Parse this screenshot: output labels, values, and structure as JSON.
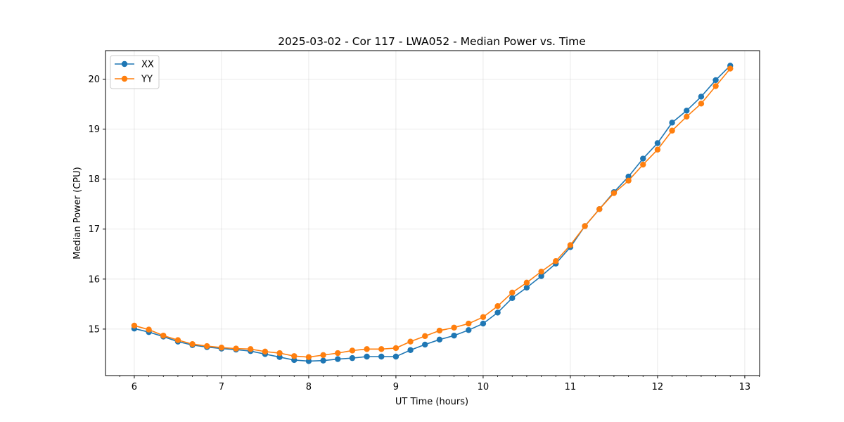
{
  "chart_data": {
    "type": "line",
    "title": "2025-03-02 - Cor 117 - LWA052 - Median Power vs. Time",
    "xlabel": "UT Time (hours)",
    "ylabel": "Median Power (CPU)",
    "xlim": [
      5.67,
      13.17
    ],
    "ylim": [
      14.07,
      20.57
    ],
    "xticks": [
      6,
      7,
      8,
      9,
      10,
      11,
      12,
      13
    ],
    "xtick_labels": [
      "6",
      "7",
      "8",
      "9",
      "10",
      "11",
      "12",
      "13"
    ],
    "yticks": [
      15,
      16,
      17,
      18,
      19,
      20
    ],
    "ytick_labels": [
      "15",
      "16",
      "17",
      "18",
      "19",
      "20"
    ],
    "grid": true,
    "legend": "top-left",
    "x": [
      6.0,
      6.1667,
      6.3333,
      6.5,
      6.6667,
      6.8333,
      7.0,
      7.1667,
      7.3333,
      7.5,
      7.6667,
      7.8333,
      8.0,
      8.1667,
      8.3333,
      8.5,
      8.6667,
      8.8333,
      9.0,
      9.1667,
      9.3333,
      9.5,
      9.6667,
      9.8333,
      10.0,
      10.1667,
      10.3333,
      10.5,
      10.6667,
      10.8333,
      11.0,
      11.1667,
      11.3333,
      11.5,
      11.6667,
      11.8333,
      12.0,
      12.1667,
      12.3333,
      12.5,
      12.6667,
      12.8333
    ],
    "series": [
      {
        "name": "XX",
        "color": "#1f77b4",
        "values": [
          15.01,
          14.94,
          14.85,
          14.75,
          14.68,
          14.64,
          14.61,
          14.59,
          14.56,
          14.5,
          14.44,
          14.38,
          14.36,
          14.37,
          14.4,
          14.42,
          14.45,
          14.45,
          14.45,
          14.58,
          14.69,
          14.79,
          14.87,
          14.98,
          15.11,
          15.33,
          15.62,
          15.83,
          16.06,
          16.31,
          16.64,
          17.06,
          17.4,
          17.74,
          18.05,
          18.41,
          18.72,
          19.13,
          19.37,
          19.65,
          19.98,
          20.27
        ]
      },
      {
        "name": "YY",
        "color": "#ff7f0e",
        "values": [
          15.07,
          14.99,
          14.87,
          14.78,
          14.7,
          14.66,
          14.63,
          14.61,
          14.6,
          14.55,
          14.52,
          14.46,
          14.44,
          14.48,
          14.52,
          14.57,
          14.6,
          14.6,
          14.62,
          14.75,
          14.86,
          14.97,
          15.03,
          15.11,
          15.24,
          15.46,
          15.73,
          15.93,
          16.15,
          16.36,
          16.68,
          17.06,
          17.4,
          17.72,
          17.97,
          18.29,
          18.59,
          18.97,
          19.25,
          19.51,
          19.86,
          20.21
        ]
      }
    ]
  }
}
